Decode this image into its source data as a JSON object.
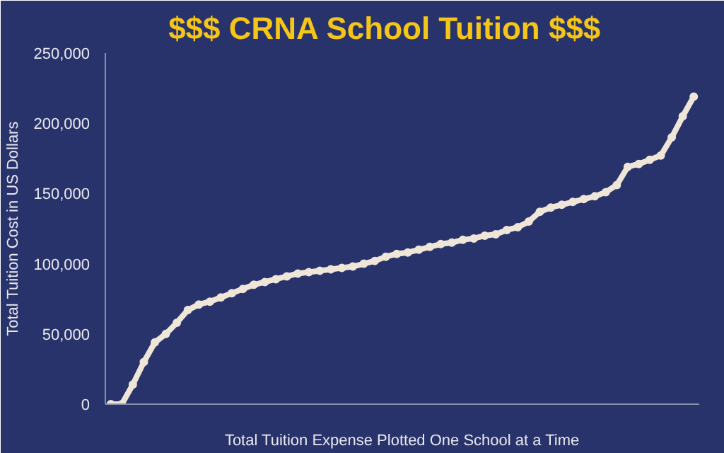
{
  "chart_data": {
    "type": "line",
    "title": "$$$   CRNA School Tuition   $$$",
    "xlabel": "Total Tuition Expense Plotted One School at a Time",
    "ylabel": "Total Tuition Cost in US Dollars",
    "categories": [
      null,
      null,
      null,
      null,
      null,
      null,
      null,
      null,
      null,
      null,
      null,
      null,
      null,
      null,
      null,
      null,
      null,
      null,
      null,
      null,
      null,
      null,
      null,
      null,
      null,
      null,
      null,
      null,
      null,
      null,
      null,
      null,
      null,
      null,
      null,
      null,
      null,
      null,
      null,
      null,
      null,
      null,
      null,
      null,
      null,
      null,
      null,
      null,
      null,
      null,
      null,
      null,
      null,
      null
    ],
    "series": [
      {
        "color": "#efe6d8",
        "values": [
          0,
          0,
          14000,
          30000,
          44000,
          50000,
          58000,
          67000,
          71000,
          73000,
          76000,
          79000,
          82000,
          85000,
          87000,
          89000,
          91000,
          93000,
          94000,
          95000,
          96000,
          97000,
          98000,
          100000,
          102000,
          105000,
          107000,
          108000,
          110000,
          112000,
          114000,
          115000,
          117000,
          118000,
          120000,
          121000,
          124000,
          126000,
          130000,
          137000,
          140000,
          142000,
          144000,
          146000,
          148000,
          151000,
          156000,
          169000,
          171000,
          174000,
          177000,
          190000,
          205000,
          219000
        ]
      }
    ],
    "ylim": [
      0,
      250000
    ],
    "yticks": [
      {
        "value": 0,
        "label": "0"
      },
      {
        "value": 50000,
        "label": "50,000"
      },
      {
        "value": 100000,
        "label": "100,000"
      },
      {
        "value": 150000,
        "label": "150,000"
      },
      {
        "value": 200000,
        "label": "200,000"
      },
      {
        "value": 250000,
        "label": "250,000"
      }
    ],
    "tick_labels": "y",
    "grid": false,
    "marker": "circle",
    "line_style": "solid"
  }
}
